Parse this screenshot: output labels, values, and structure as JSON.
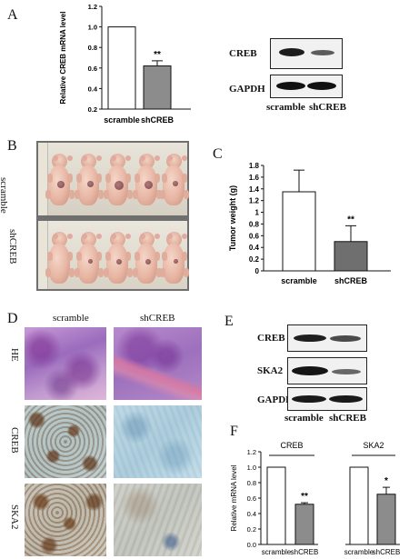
{
  "panels": {
    "A": "A",
    "B": "B",
    "C": "C",
    "D": "D",
    "E": "E",
    "F": "F"
  },
  "chart_data": [
    {
      "type": "bar",
      "panel": "A",
      "categories": [
        "scramble",
        "shCREB"
      ],
      "values": [
        1.0,
        0.62
      ],
      "errors": [
        0,
        0.05
      ],
      "ylabel": "Relative CREB mRNA level",
      "ylim": [
        0.2,
        1.2
      ],
      "yticks": [
        "0.2",
        "0.4",
        "0.6",
        "0.8",
        "1.0",
        "1.2"
      ],
      "significance": [
        "",
        "**"
      ],
      "bar_colors": [
        "#ffffff",
        "#8c8c8c"
      ]
    },
    {
      "type": "bar",
      "panel": "C",
      "categories": [
        "scramble",
        "shCREB"
      ],
      "values": [
        1.35,
        0.5
      ],
      "errors": [
        0.37,
        0.27
      ],
      "ylabel": "Tumor weight (g)",
      "ylim": [
        0,
        1.8
      ],
      "yticks": [
        "0",
        "0.2",
        "0.4",
        "0.6",
        "0.8",
        "1",
        "1.2",
        "1.4",
        "1.6",
        "1.8"
      ],
      "significance": [
        "",
        "**"
      ],
      "bar_colors": [
        "#ffffff",
        "#6f6f6f"
      ]
    },
    {
      "type": "bar",
      "panel": "F",
      "groups": [
        "CREB",
        "SKA2"
      ],
      "categories": [
        "scramble",
        "shCREB",
        "scramble",
        "shCREB"
      ],
      "values": [
        1.0,
        0.52,
        1.0,
        0.65
      ],
      "errors": [
        0,
        0.02,
        0,
        0.09
      ],
      "ylabel": "Relative mRNA level",
      "ylim": [
        0,
        1.2
      ],
      "yticks": [
        "0.0",
        "0.2",
        "0.4",
        "0.6",
        "0.8",
        "1.0",
        "1.2"
      ],
      "significance": [
        "",
        "**",
        "",
        "*"
      ],
      "bar_colors": [
        "#ffffff",
        "#8c8c8c",
        "#ffffff",
        "#8c8c8c"
      ]
    }
  ],
  "blot_A": {
    "rows": [
      "CREB",
      "GAPDH"
    ],
    "lanes": [
      "scramble",
      "shCREB"
    ]
  },
  "photo_B": {
    "rows": [
      "scramble",
      "shCREB"
    ]
  },
  "ihc_D": {
    "columns": [
      "scramble",
      "shCREB"
    ],
    "rows": [
      "HE",
      "CREB",
      "SKA2"
    ]
  },
  "blot_E": {
    "rows": [
      "CREB",
      "SKA2",
      "GAPDH"
    ],
    "lanes": [
      "scramble",
      "shCREB"
    ]
  }
}
